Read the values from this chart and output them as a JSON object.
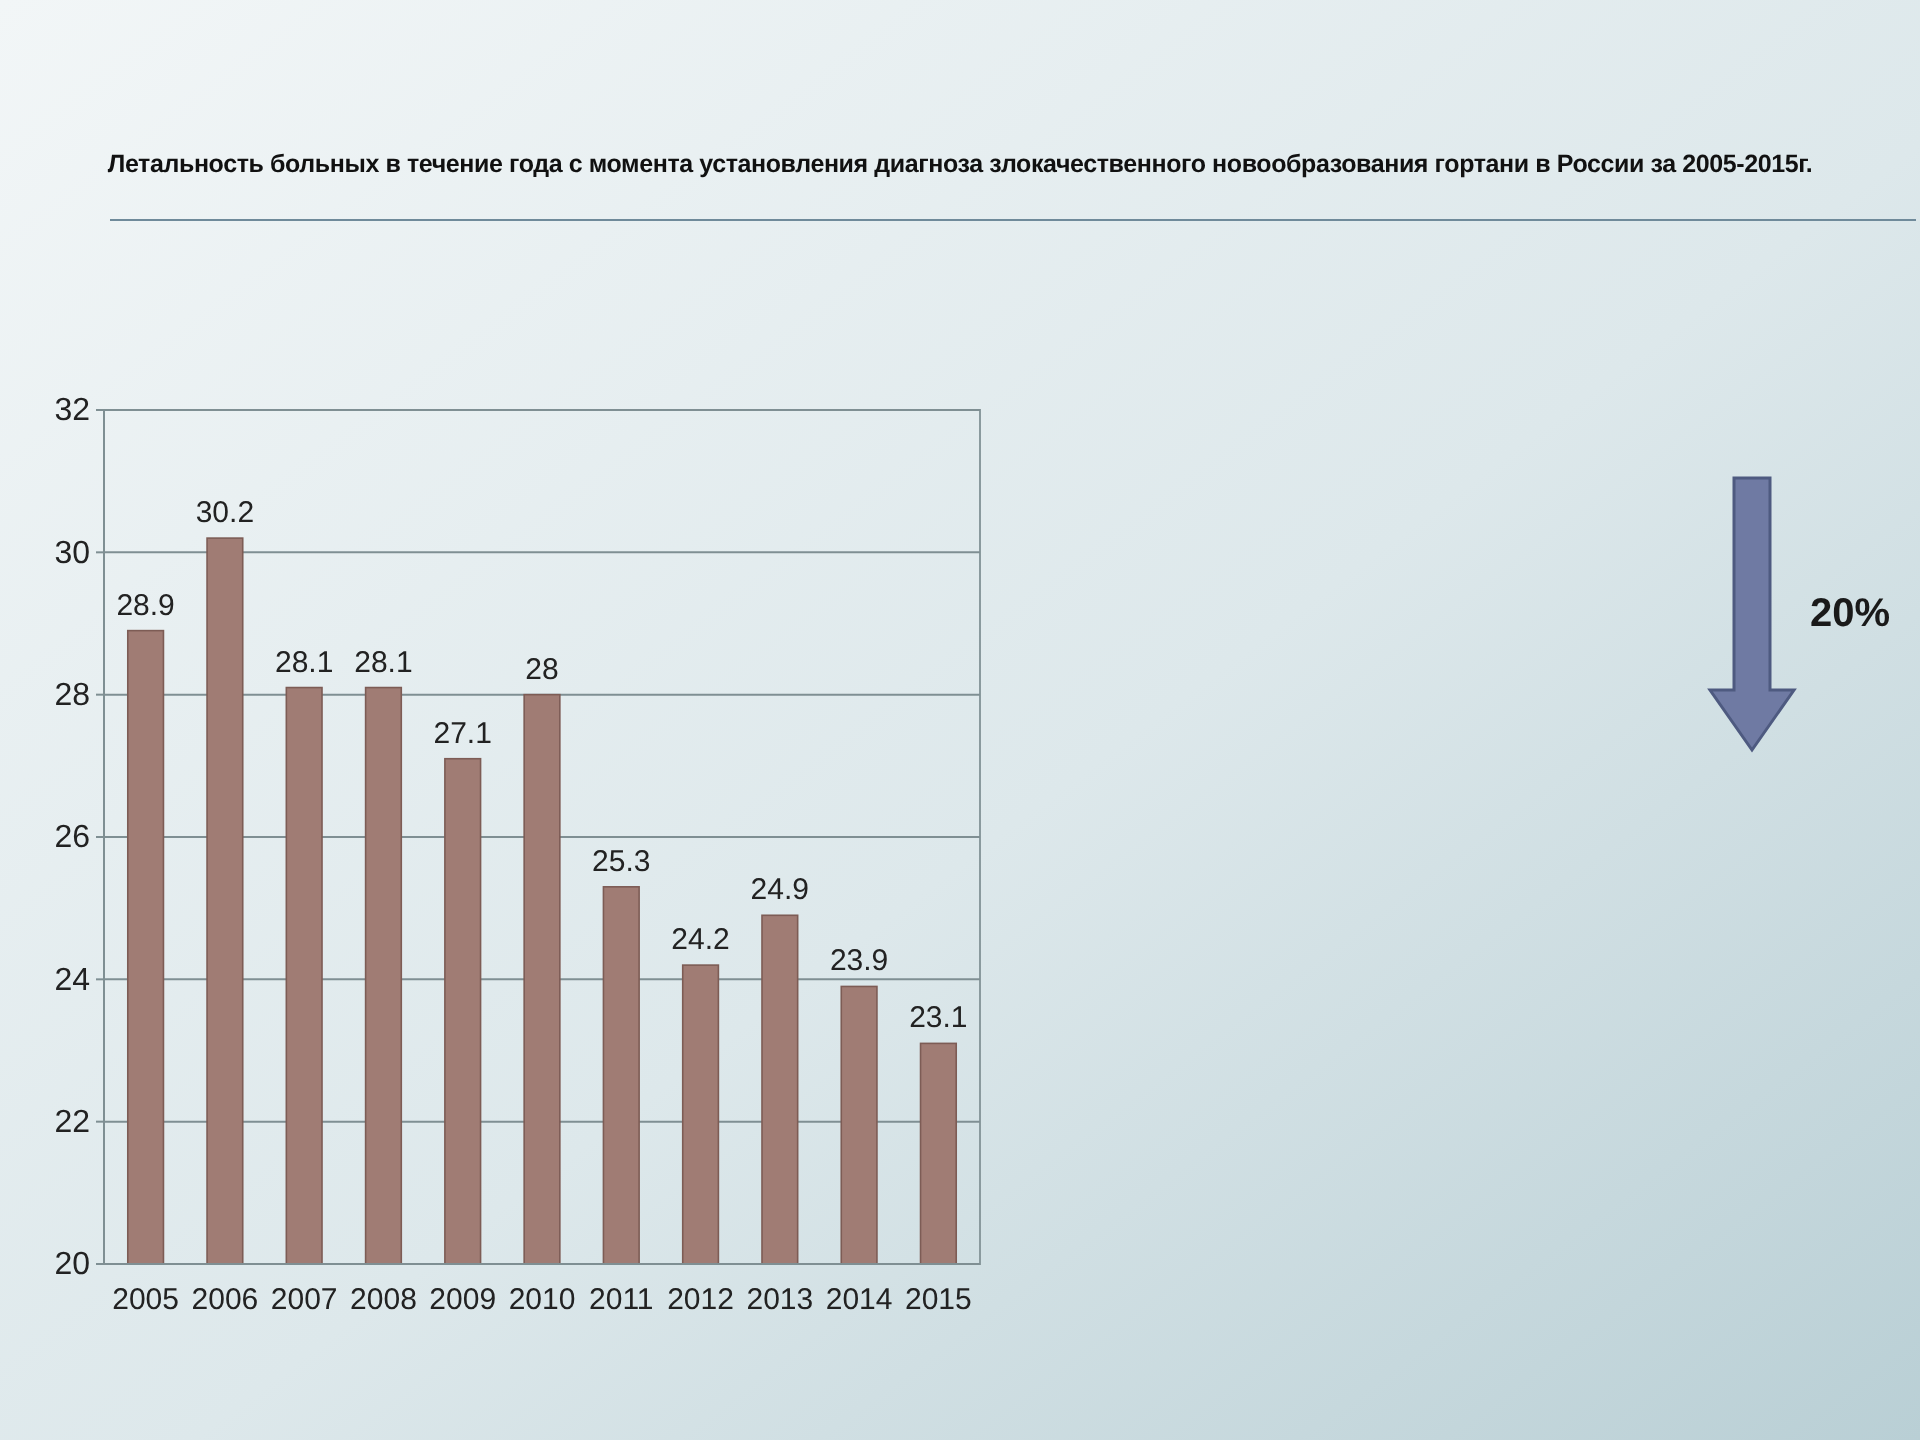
{
  "chart_data": {
    "type": "bar",
    "title": "Летальность больных в течение года с момента установления диагноза злокачественного новообразования гортани в России за 2005-2015г.",
    "categories": [
      "2005",
      "2006",
      "2007",
      "2008",
      "2009",
      "2010",
      "2011",
      "2012",
      "2013",
      "2014",
      "2015"
    ],
    "values": [
      28.9,
      30.2,
      28.1,
      28.1,
      27.1,
      28,
      25.3,
      24.2,
      24.9,
      23.9,
      23.1
    ],
    "color": "#a07c74",
    "ylim": [
      20,
      32
    ],
    "yticks": [
      20,
      22,
      24,
      26,
      28,
      30,
      32
    ],
    "grid": "y",
    "data_labels": true,
    "annotations": [
      "20%"
    ]
  }
}
